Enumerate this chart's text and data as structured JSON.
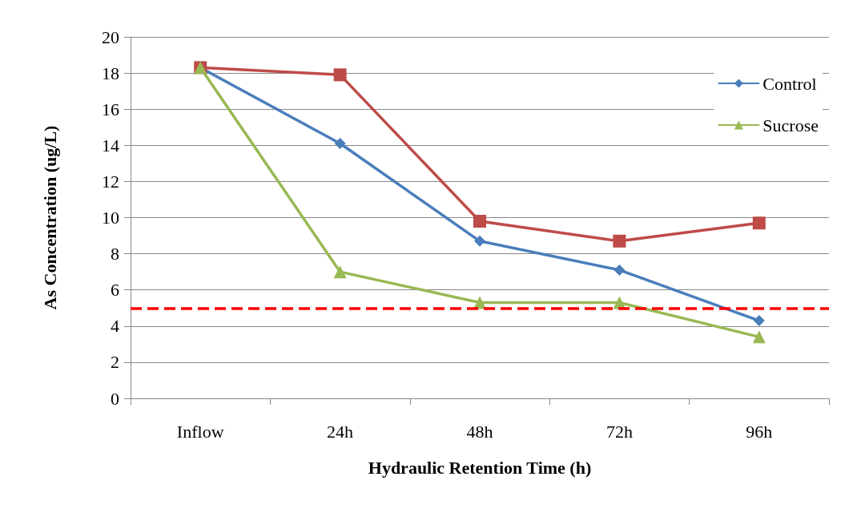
{
  "chart_data": {
    "type": "line",
    "xlabel": "Hydraulic Retention Time (h)",
    "ylabel": "As Concentration (ug/L)",
    "categories": [
      "Inflow",
      "24h",
      "48h",
      "72h",
      "96h"
    ],
    "series": [
      {
        "name": "Control",
        "color": "#4a7ebb",
        "marker": "diamond",
        "values": [
          18.3,
          14.1,
          8.7,
          7.1,
          4.3
        ]
      },
      {
        "color": "#be4b48",
        "marker": "square",
        "values": [
          18.3,
          17.9,
          9.8,
          8.7,
          9.7
        ]
      },
      {
        "name": "Sucrose",
        "color": "#98b954",
        "marker": "triangle",
        "values": [
          18.3,
          7.0,
          5.3,
          5.3,
          3.4
        ]
      }
    ],
    "ylim": [
      0,
      20
    ],
    "yticks": [
      0,
      2,
      4,
      6,
      8,
      10,
      12,
      14,
      16,
      18,
      20
    ],
    "grid": "y",
    "legend": "top right",
    "line_style": "solid",
    "ref_lines": [
      {
        "axis": "y",
        "value": 5,
        "color": "#ff0000",
        "line_style": "dashed"
      }
    ]
  }
}
